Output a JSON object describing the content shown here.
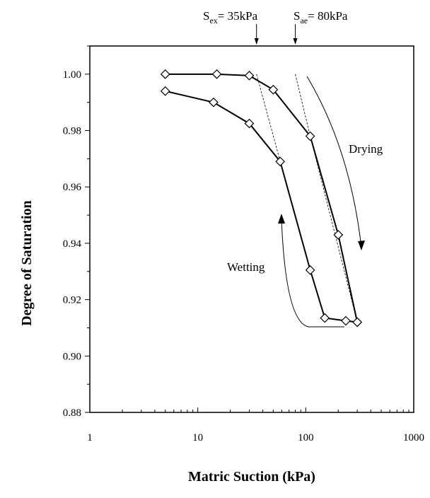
{
  "chart_data": {
    "type": "scatter",
    "title": "",
    "xlabel": "Matric Suction (kPa)",
    "ylabel": "Degree of Saturation",
    "xscale": "log",
    "xlim": [
      1,
      1000
    ],
    "ylim": [
      0.88,
      1.01
    ],
    "x_ticks": [
      "1",
      "10",
      "100",
      "1000"
    ],
    "y_ticks": [
      "0.88",
      "0.90",
      "0.92",
      "0.94",
      "0.96",
      "0.98",
      "1.00"
    ],
    "grid": false,
    "series": [
      {
        "name": "Drying",
        "marker": "diamond",
        "x": [
          5,
          15,
          30,
          50,
          110,
          200,
          300
        ],
        "y": [
          1.0,
          1.0,
          0.9995,
          0.9945,
          0.978,
          0.943,
          0.912
        ]
      },
      {
        "name": "Wetting",
        "marker": "diamond",
        "x": [
          300,
          235,
          150,
          110,
          58,
          30,
          14,
          5
        ],
        "y": [
          0.912,
          0.9125,
          0.9135,
          0.9305,
          0.969,
          0.9825,
          0.99,
          0.994
        ]
      }
    ],
    "annotations": [
      {
        "label": "S",
        "subscript": "ex",
        "text": "= 35kPa",
        "x": 35
      },
      {
        "label": "S",
        "subscript": "ae",
        "text": "= 80kPa",
        "x": 80
      },
      {
        "text": "Drying"
      },
      {
        "text": "Wetting"
      }
    ]
  }
}
